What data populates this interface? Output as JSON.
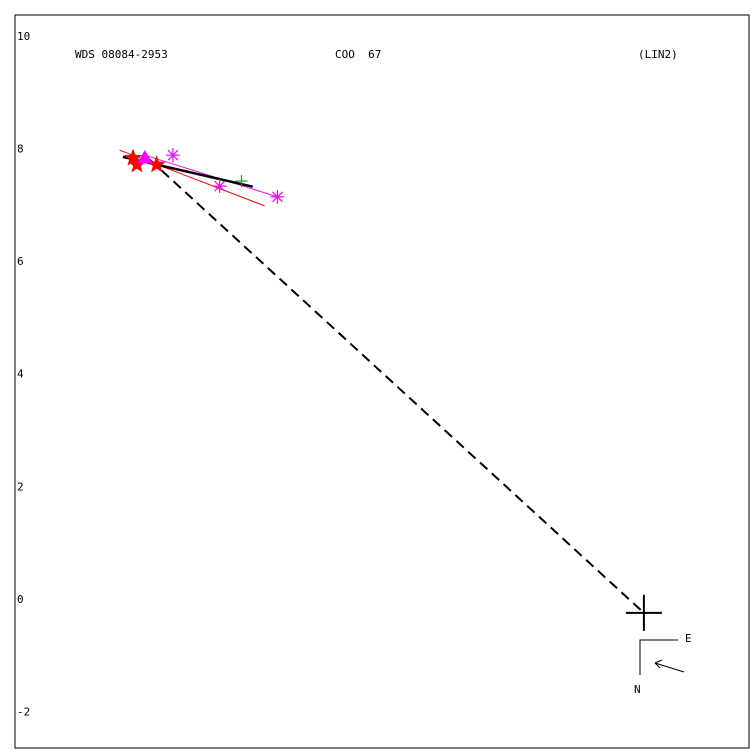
{
  "chart_data": {
    "type": "scatter",
    "title": "WDS 08084-2953",
    "subtitle": "COO  67",
    "note": "(LIN2)",
    "compass": {
      "east": "E",
      "north": "N"
    },
    "xlim": [
      -11.19,
      1.87
    ],
    "ylim": [
      -2.4,
      10.62
    ],
    "yticks": [
      -2,
      0,
      2,
      4,
      6,
      8,
      10
    ],
    "grid": false,
    "lines": [
      {
        "color": "#ff0000",
        "dash": false,
        "width": 1,
        "x": [
          -9.33,
          -6.75
        ],
        "values": [
          8.22,
          7.23
        ]
      },
      {
        "color": "#ff00ff",
        "dash": false,
        "width": 1,
        "x": [
          -8.88,
          -6.52
        ],
        "values": [
          8.13,
          7.39
        ]
      },
      {
        "color": "#000000",
        "dash": false,
        "width": 2.5,
        "x": [
          -9.27,
          -6.96
        ],
        "values": [
          8.1,
          7.57
        ]
      },
      {
        "color": "#000000",
        "dash": true,
        "width": 2,
        "x": [
          -8.79,
          0
        ],
        "values": [
          8.05,
          0
        ]
      }
    ],
    "series": [
      {
        "color": "#ff0000",
        "marker": "star",
        "x": [
          -9.09,
          -9.02,
          -8.67
        ],
        "values": [
          8.08,
          7.96,
          7.96
        ]
      },
      {
        "color": "#ff00ff",
        "marker": "asterisk",
        "x": [
          -8.38,
          -7.55,
          -6.52
        ],
        "values": [
          8.13,
          7.58,
          7.39
        ]
      },
      {
        "color": "#ff00ff",
        "marker": "triangle",
        "x": [
          -8.88
        ],
        "values": [
          8.08
        ]
      },
      {
        "color": "#00aa00",
        "marker": "plus",
        "x": [
          -7.16
        ],
        "values": [
          7.67
        ]
      },
      {
        "color": "#000000",
        "marker": "bigcross",
        "x": [
          0
        ],
        "values": [
          0
        ]
      }
    ]
  }
}
